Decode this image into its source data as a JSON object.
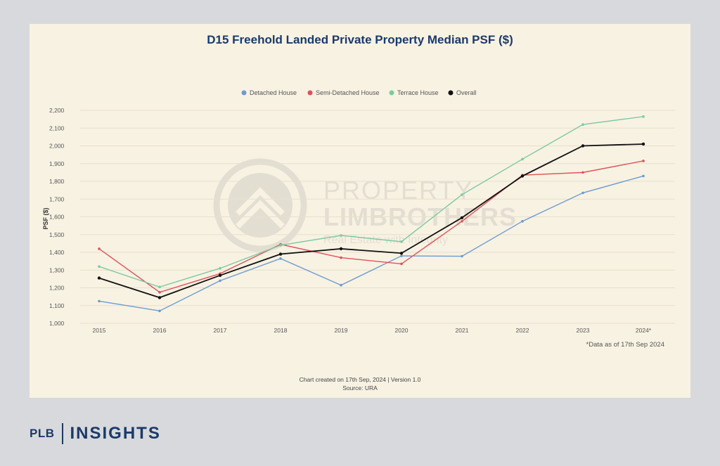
{
  "chart_data": {
    "type": "line",
    "title": "D15 Freehold Landed Private Property Median PSF ($)",
    "xlabel": "",
    "ylabel": "PSF ($)",
    "categories": [
      "2015",
      "2016",
      "2017",
      "2018",
      "2019",
      "2020",
      "2021",
      "2022",
      "2023",
      "2024*"
    ],
    "ylim": [
      1000,
      2200
    ],
    "yticks": [
      "1,000",
      "1,100",
      "1,200",
      "1,300",
      "1,400",
      "1,500",
      "1,600",
      "1,700",
      "1,800",
      "1,900",
      "2,000",
      "2,100",
      "2,200"
    ],
    "ytick_values": [
      1000,
      1100,
      1200,
      1300,
      1400,
      1500,
      1600,
      1700,
      1800,
      1900,
      2000,
      2100,
      2200
    ],
    "grid": true,
    "legend_position": "top",
    "series": [
      {
        "name": "Detached House",
        "color": "#6b9bd1",
        "values": [
          1125,
          1070,
          1240,
          1365,
          1215,
          1380,
          1378,
          1575,
          1735,
          1830
        ]
      },
      {
        "name": "Semi-Detached House",
        "color": "#e0515a",
        "values": [
          1420,
          1175,
          1280,
          1445,
          1370,
          1335,
          1575,
          1835,
          1850,
          1915
        ]
      },
      {
        "name": "Terrace House",
        "color": "#7dc9a0",
        "values": [
          1320,
          1205,
          1310,
          1440,
          1495,
          1460,
          1725,
          1925,
          2120,
          2165
        ]
      },
      {
        "name": "Overall",
        "color": "#111111",
        "values": [
          1255,
          1145,
          1270,
          1390,
          1420,
          1395,
          1595,
          1830,
          2000,
          2010
        ]
      }
    ],
    "note": "*Data as of 17th Sep 2024",
    "footer_line1": "Chart created on 17th Sep, 2024 | Version 1.0",
    "footer_line2": "Source: URA"
  },
  "watermark": {
    "line1": "PROPERTY",
    "line2": "LIMBROTHERS",
    "line3": "Real Estate with Integrity"
  },
  "brand": {
    "prefix": "PLB",
    "name": "INSIGHTS"
  }
}
